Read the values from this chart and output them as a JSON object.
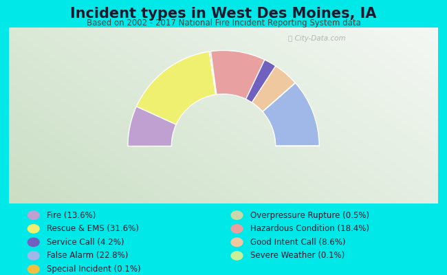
{
  "title": "Incident types in West Des Moines, IA",
  "subtitle": "Based on 2002 - 2017 National Fire Incident Reporting System data",
  "background_color": "#00e8e8",
  "chart_bg_left": "#c8dfc0",
  "chart_bg_right": "#e8f0e8",
  "chart_bg_center": "#f0f4f0",
  "watermark": "ⓘ City-Data.com",
  "segments": [
    {
      "label": "Fire (13.6%)",
      "value": 13.6,
      "color": "#c0a0d0"
    },
    {
      "label": "Rescue & EMS (31.6%)",
      "value": 31.6,
      "color": "#f0f070"
    },
    {
      "label": "Service Call (4.2%)",
      "value": 4.2,
      "color": "#7060c0"
    },
    {
      "label": "False Alarm (22.8%)",
      "value": 22.8,
      "color": "#a0b8e8"
    },
    {
      "label": "Special Incident (0.1%)",
      "value": 0.1,
      "color": "#f0c040"
    },
    {
      "label": "Overpressure Rupture (0.5%)",
      "value": 0.5,
      "color": "#c8d8a8"
    },
    {
      "label": "Hazardous Condition (18.4%)",
      "value": 18.4,
      "color": "#e8a0a0"
    },
    {
      "label": "Good Intent Call (8.6%)",
      "value": 8.6,
      "color": "#f0c8a0"
    },
    {
      "label": "Severe Weather (0.1%)",
      "value": 0.1,
      "color": "#c8f098"
    }
  ],
  "title_fontsize": 15,
  "subtitle_fontsize": 8.5,
  "legend_fontsize": 8.5,
  "title_color": "#1a1a2e",
  "subtitle_color": "#444444",
  "legend_text_color": "#1a1a2e"
}
